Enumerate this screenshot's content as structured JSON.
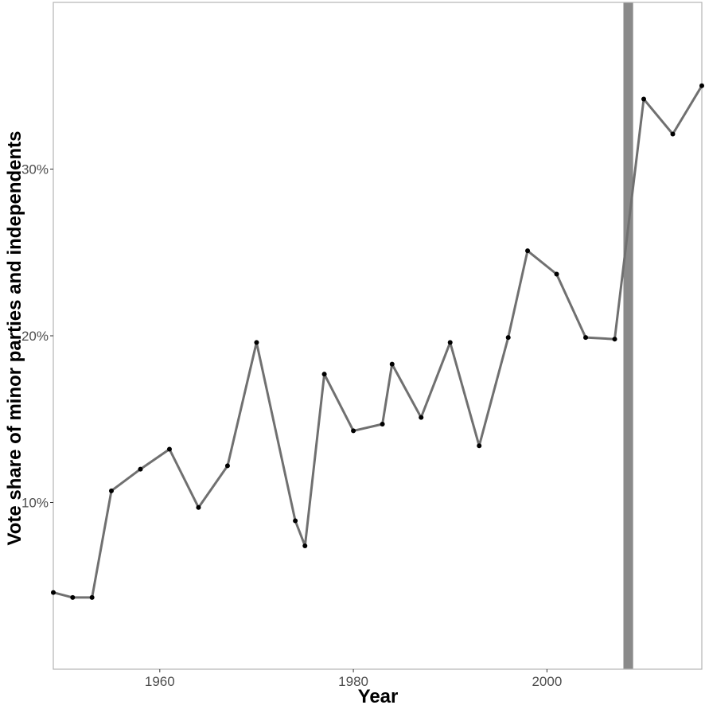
{
  "chart_data": {
    "type": "line",
    "title": "",
    "xlabel": "Year",
    "ylabel": "Vote share of minor parties and independents",
    "xlim": [
      1949,
      2016
    ],
    "ylim": [
      0,
      40
    ],
    "x_ticks": [
      1960,
      1980,
      2000
    ],
    "y_ticks": [
      10,
      20,
      30
    ],
    "x_tick_labels": [
      "1960",
      "1980",
      "2000"
    ],
    "y_tick_labels": [
      "10%",
      "20%",
      "30%"
    ],
    "grid": false,
    "highlight_band": {
      "x_start": 2007.9,
      "x_end": 2008.9,
      "color": "#8a8a8a"
    },
    "line_color": "#707070",
    "point_color": "#000000",
    "series": [
      {
        "x": [
          1949,
          1951,
          1953,
          1955,
          1958,
          1961,
          1964,
          1967,
          1970,
          1974,
          1975,
          1977,
          1980,
          1983,
          1984,
          1987,
          1990,
          1993,
          1996,
          1998,
          2001,
          2004,
          2007,
          2010,
          2013,
          2016
        ],
        "values": [
          4.6,
          4.3,
          4.3,
          10.7,
          12.0,
          13.2,
          9.7,
          12.2,
          19.6,
          8.9,
          7.4,
          17.7,
          14.3,
          14.7,
          18.3,
          15.1,
          19.6,
          13.4,
          19.9,
          25.1,
          23.7,
          19.9,
          19.8,
          34.2,
          32.1,
          35.0
        ]
      }
    ]
  }
}
